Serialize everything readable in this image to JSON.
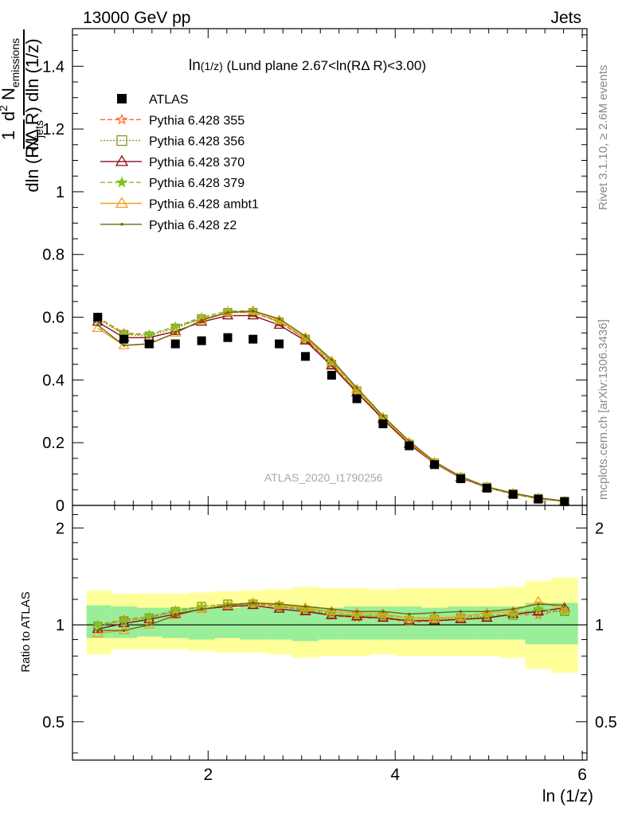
{
  "header": {
    "left": "13000 GeV pp",
    "right": "Jets"
  },
  "side_labels": {
    "rivet": "Rivet 3.1.10, ≥ 2.6M events",
    "mcplots": "mcplots.cern.ch [arXiv:1306.3436]"
  },
  "watermark": "ATLAS_2020_I1790256",
  "chart_data": [
    {
      "type": "line",
      "title_main": "ln",
      "title_sub": "(1/z)",
      "title_rest": " (Lund plane 2.67<ln(RΔ R)<3.00)",
      "ylabel": "1/N_jets d²N_emissions / dln(R/ΔR) dln(1/z)",
      "xlabel": "ln (1/z)",
      "xlim": [
        0.55,
        6.05
      ],
      "ylim": [
        0,
        1.52
      ],
      "yticks": [
        "0",
        "0.2",
        "0.4",
        "0.6",
        "0.8",
        "1",
        "1.2",
        "1.4"
      ],
      "xticks": [
        "2",
        "4",
        "6"
      ],
      "x": [
        0.82,
        1.1,
        1.37,
        1.65,
        1.93,
        2.21,
        2.48,
        2.76,
        3.04,
        3.32,
        3.59,
        3.87,
        4.15,
        4.42,
        4.7,
        4.98,
        5.26,
        5.53,
        5.81
      ],
      "data": {
        "name": "ATLAS",
        "values": [
          0.6,
          0.53,
          0.515,
          0.515,
          0.525,
          0.535,
          0.53,
          0.515,
          0.475,
          0.415,
          0.34,
          0.26,
          0.19,
          0.13,
          0.085,
          0.055,
          0.035,
          0.02,
          0.012
        ]
      },
      "series": [
        {
          "name": "Pythia 6.428 355",
          "color": "#ff6a1f",
          "dash": "6,3",
          "marker": "star-open",
          "values": [
            0.6,
            0.55,
            0.545,
            0.57,
            0.595,
            0.615,
            0.615,
            0.585,
            0.53,
            0.45,
            0.36,
            0.275,
            0.195,
            0.135,
            0.088,
            0.057,
            0.036,
            0.021,
            0.013
          ]
        },
        {
          "name": "Pythia 6.428 356",
          "color": "#7d9a1f",
          "dash": "2,2",
          "marker": "square-open",
          "values": [
            0.595,
            0.545,
            0.54,
            0.565,
            0.595,
            0.615,
            0.615,
            0.585,
            0.53,
            0.45,
            0.365,
            0.275,
            0.195,
            0.135,
            0.089,
            0.058,
            0.037,
            0.022,
            0.013
          ]
        },
        {
          "name": "Pythia 6.428 370",
          "color": "#8b0a1a",
          "dash": "",
          "marker": "triangle-open",
          "values": [
            0.585,
            0.535,
            0.535,
            0.555,
            0.585,
            0.605,
            0.605,
            0.575,
            0.525,
            0.445,
            0.36,
            0.275,
            0.195,
            0.135,
            0.088,
            0.057,
            0.037,
            0.022,
            0.013
          ]
        },
        {
          "name": "Pythia 6.428 379",
          "color": "#7fc31c",
          "dash": "6,3",
          "marker": "star",
          "values": [
            0.6,
            0.545,
            0.545,
            0.57,
            0.6,
            0.62,
            0.62,
            0.59,
            0.535,
            0.455,
            0.365,
            0.28,
            0.2,
            0.137,
            0.09,
            0.058,
            0.037,
            0.022,
            0.013
          ]
        },
        {
          "name": "Pythia 6.428 ambt1",
          "color": "#f2a020",
          "dash": "",
          "marker": "triangle-open",
          "values": [
            0.565,
            0.51,
            0.515,
            0.55,
            0.59,
            0.615,
            0.62,
            0.59,
            0.535,
            0.46,
            0.37,
            0.28,
            0.2,
            0.137,
            0.09,
            0.059,
            0.038,
            0.023,
            0.014
          ]
        },
        {
          "name": "Pythia 6.428 z2",
          "color": "#6b6b12",
          "dash": "",
          "marker": "dot",
          "values": [
            0.575,
            0.51,
            0.515,
            0.55,
            0.59,
            0.615,
            0.62,
            0.595,
            0.54,
            0.465,
            0.375,
            0.285,
            0.205,
            0.14,
            0.092,
            0.06,
            0.039,
            0.024,
            0.014
          ]
        }
      ]
    },
    {
      "type": "line",
      "ylabel": "Ratio to ATLAS",
      "ylim": [
        0.38,
        2.35
      ],
      "log_y": true,
      "yticks": [
        "0.5",
        "1",
        "2"
      ],
      "xticks": [
        "2",
        "4",
        "6"
      ],
      "band_edges": [
        0.7,
        0.96,
        1.24,
        1.51,
        1.79,
        2.07,
        2.34,
        2.62,
        2.9,
        3.18,
        3.45,
        3.73,
        4.01,
        4.28,
        4.56,
        4.84,
        5.12,
        5.39,
        5.67,
        5.95
      ],
      "band_stat": {
        "lo": [
          0.91,
          0.91,
          0.92,
          0.91,
          0.9,
          0.91,
          0.9,
          0.9,
          0.89,
          0.9,
          0.9,
          0.9,
          0.9,
          0.9,
          0.9,
          0.9,
          0.9,
          0.87,
          0.87
        ],
        "hi": [
          1.15,
          1.14,
          1.13,
          1.13,
          1.13,
          1.13,
          1.14,
          1.14,
          1.14,
          1.13,
          1.14,
          1.14,
          1.14,
          1.13,
          1.14,
          1.14,
          1.14,
          1.17,
          1.17
        ]
      },
      "band_syst": {
        "lo": [
          0.81,
          0.84,
          0.84,
          0.84,
          0.83,
          0.82,
          0.82,
          0.81,
          0.79,
          0.8,
          0.8,
          0.81,
          0.8,
          0.8,
          0.8,
          0.8,
          0.79,
          0.73,
          0.71
        ],
        "hi": [
          1.28,
          1.25,
          1.25,
          1.25,
          1.26,
          1.27,
          1.28,
          1.29,
          1.31,
          1.3,
          1.3,
          1.29,
          1.3,
          1.3,
          1.3,
          1.3,
          1.31,
          1.37,
          1.4
        ]
      },
      "series": [
        {
          "name": "Pythia 6.428 355",
          "color": "#ff6a1f",
          "dash": "6,3",
          "marker": "star-open",
          "values": [
            1.0,
            1.04,
            1.06,
            1.1,
            1.14,
            1.16,
            1.16,
            1.14,
            1.11,
            1.07,
            1.05,
            1.05,
            1.02,
            1.03,
            1.04,
            1.05,
            1.08,
            1.07,
            1.12
          ]
        },
        {
          "name": "Pythia 6.428 356",
          "color": "#7d9a1f",
          "dash": "2,2",
          "marker": "square-open",
          "values": [
            0.99,
            1.03,
            1.05,
            1.1,
            1.14,
            1.16,
            1.16,
            1.14,
            1.11,
            1.08,
            1.07,
            1.06,
            1.03,
            1.04,
            1.05,
            1.06,
            1.07,
            1.1,
            1.1
          ]
        },
        {
          "name": "Pythia 6.428 370",
          "color": "#8b0a1a",
          "dash": "",
          "marker": "triangle-open",
          "values": [
            0.97,
            1.01,
            1.04,
            1.08,
            1.12,
            1.14,
            1.15,
            1.12,
            1.1,
            1.07,
            1.06,
            1.05,
            1.03,
            1.03,
            1.04,
            1.05,
            1.08,
            1.1,
            1.13
          ]
        },
        {
          "name": "Pythia 6.428 379",
          "color": "#7fc31c",
          "dash": "6,3",
          "marker": "star",
          "values": [
            1.0,
            1.03,
            1.06,
            1.11,
            1.14,
            1.16,
            1.17,
            1.15,
            1.12,
            1.09,
            1.07,
            1.07,
            1.05,
            1.05,
            1.06,
            1.07,
            1.08,
            1.12,
            1.1
          ]
        },
        {
          "name": "Pythia 6.428 ambt1",
          "color": "#f2a020",
          "dash": "",
          "marker": "triangle-open",
          "values": [
            0.94,
            0.96,
            1.0,
            1.07,
            1.12,
            1.15,
            1.17,
            1.15,
            1.13,
            1.1,
            1.09,
            1.08,
            1.05,
            1.05,
            1.06,
            1.09,
            1.1,
            1.18,
            1.12
          ]
        },
        {
          "name": "Pythia 6.428 z2",
          "color": "#6b6b12",
          "dash": "",
          "marker": "dot",
          "values": [
            0.96,
            0.96,
            1.0,
            1.07,
            1.12,
            1.15,
            1.17,
            1.16,
            1.14,
            1.12,
            1.1,
            1.1,
            1.08,
            1.09,
            1.1,
            1.1,
            1.12,
            1.16,
            1.15
          ]
        }
      ]
    }
  ]
}
